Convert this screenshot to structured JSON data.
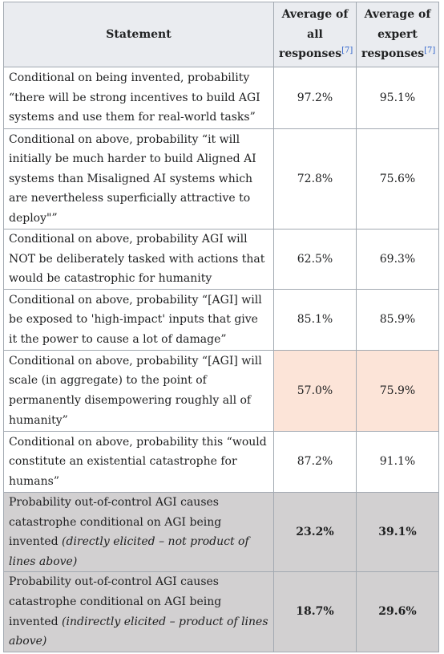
{
  "table": {
    "headers": {
      "statement": "Statement",
      "all_line1": "Average of",
      "all_line2": "all",
      "all_line3": "responses",
      "expert_line1": "Average of",
      "expert_line2": "expert",
      "expert_line3": "responses",
      "ref": "[7]"
    },
    "rows": [
      {
        "statement": "Conditional on being invented, probability “there will be strong incentives to build AGI systems and use them for real-world tasks”",
        "all": "97.2%",
        "expert": "95.1%"
      },
      {
        "statement": "Conditional on above, probability “it will initially be much harder to build Aligned AI systems than Misaligned AI systems which are nevertheless superficially attractive to deploy\"”",
        "all": "72.8%",
        "expert": "75.6%"
      },
      {
        "statement": "Conditional on above, probability AGI will NOT be deliberately tasked with actions that would be catastrophic for humanity",
        "all": "62.5%",
        "expert": "69.3%"
      },
      {
        "statement": "Conditional on above, probability “[AGI] will be exposed to 'high-impact' inputs that give it the power to cause a lot of damage”",
        "all": "85.1%",
        "expert": "85.9%"
      },
      {
        "statement": "Conditional on above, probability “[AGI] will scale (in aggregate) to the point of permanently disempowering roughly all of humanity”",
        "all": "57.0%",
        "expert": "75.9%"
      },
      {
        "statement": "Conditional on above, probability this “would constitute an existential catastrophe for humans”",
        "all": "87.2%",
        "expert": "91.1%"
      },
      {
        "statement": "Probability out-of-control AGI causes catastrophe conditional on AGI being invented",
        "note": "(directly elicited – not product of lines above)",
        "all": "23.2%",
        "expert": "39.1%"
      },
      {
        "statement": "Probability out-of-control AGI causes catastrophe conditional on AGI being invented",
        "note": "(indirectly elicited – product of lines above)",
        "all": "18.7%",
        "expert": "29.6%"
      }
    ]
  },
  "colors": {
    "highlight": "#fce4d8",
    "grey_rows": "#d2d0d1",
    "header_bg": "#eaecf0",
    "border": "#a2a9b1",
    "link": "#3366cc"
  }
}
